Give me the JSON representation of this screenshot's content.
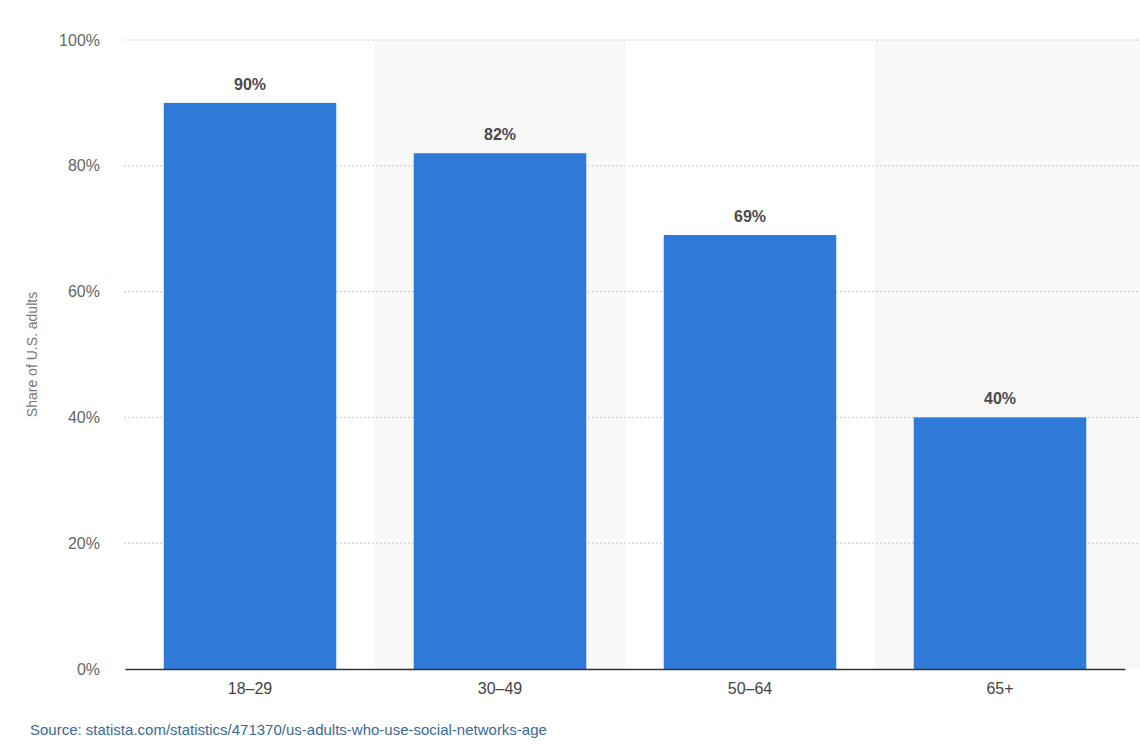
{
  "chart_data": {
    "type": "bar",
    "y_label": "Share of U.S. adults",
    "source": "Source: statista.com/statistics/471370/us-adults-who-use-social-networks-age",
    "categories": [
      "18–29",
      "30–49",
      "50–64",
      "65+"
    ],
    "values": [
      90,
      82,
      69,
      40
    ],
    "value_labels": [
      "90%",
      "82%",
      "69%",
      "40%"
    ],
    "color": "#2f79d9",
    "ylim": [
      0,
      100
    ],
    "yticks": [
      {
        "value": 0,
        "label": "0%"
      },
      {
        "value": 20,
        "label": "20%"
      },
      {
        "value": 40,
        "label": "40%"
      },
      {
        "value": 60,
        "label": "60%"
      },
      {
        "value": 80,
        "label": "80%"
      },
      {
        "value": 100,
        "label": "100%"
      }
    ],
    "grid": true,
    "data_labels": true
  }
}
